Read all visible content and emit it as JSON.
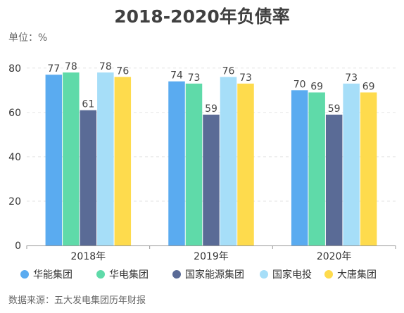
{
  "chart_data": {
    "type": "bar",
    "title": "2018-2020年负债率",
    "unit_label": "单位：%",
    "source": "数据来源：五大发电集团历年财报",
    "categories": [
      "2018年",
      "2019年",
      "2020年"
    ],
    "ylim": [
      0,
      85
    ],
    "yticks": [
      0,
      20,
      40,
      60,
      80
    ],
    "grid": true,
    "legend_position": "bottom",
    "series": [
      {
        "name": "华能集团",
        "color": "#5aabf0",
        "values": [
          77,
          74,
          70
        ]
      },
      {
        "name": "华电集团",
        "color": "#5fdaa9",
        "values": [
          78,
          73,
          69
        ]
      },
      {
        "name": "国家能源集团",
        "color": "#5a6b96",
        "values": [
          61,
          59,
          59
        ]
      },
      {
        "name": "国家电投",
        "color": "#a6def8",
        "values": [
          78,
          76,
          73
        ]
      },
      {
        "name": "大唐集团",
        "color": "#fedb4d",
        "values": [
          76,
          73,
          69
        ]
      }
    ]
  }
}
